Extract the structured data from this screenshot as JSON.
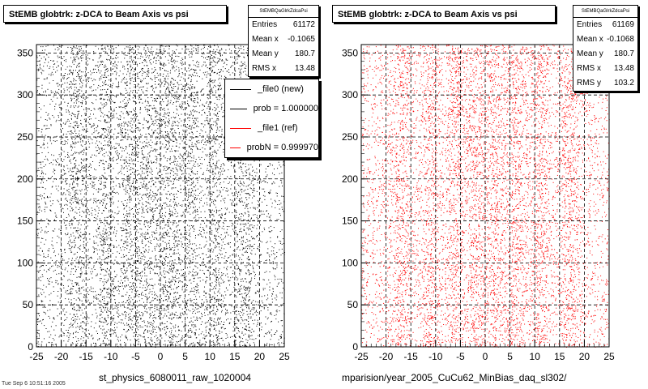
{
  "chart_data": [
    {
      "type": "scatter",
      "title": "StEMB globtrk: z-DCA to Beam Axis vs psi",
      "stats_header": "StEMBQaGlrkZdcaPsi",
      "stats": [
        {
          "label": "Entries",
          "value": "61172"
        },
        {
          "label": "Mean x",
          "value": "-0.1065"
        },
        {
          "label": "Mean y",
          "value": "180.7"
        },
        {
          "label": "RMS x",
          "value": "13.48"
        }
      ],
      "legend": [
        {
          "text": "_file0 (new)",
          "color": "#000000"
        },
        {
          "text": "prob = 1.000000",
          "color": "#000000"
        },
        {
          "text": "_file1 (ref)",
          "color": "#ff0000"
        },
        {
          "text": "probN = 0.999970",
          "color": "#ff0000"
        }
      ],
      "marker_color": "#000000",
      "xlim": [
        -25,
        25
      ],
      "ylim": [
        0,
        360
      ],
      "xticks": [
        -25,
        -20,
        -15,
        -10,
        -5,
        0,
        5,
        10,
        15,
        20,
        25
      ],
      "yticks": [
        0,
        50,
        100,
        150,
        200,
        250,
        300,
        350
      ],
      "grid": true,
      "distribution": "approximately uniform in y over 0-360; x spread -25 to 25 with density concentrated near x=0 and in vertical bands",
      "bottom_label": "st_physics_6080011_raw_1020004"
    },
    {
      "type": "scatter",
      "title": "StEMB globtrk: z-DCA to Beam Axis vs psi",
      "stats_header": "StEMBQaGlrkZdcaPsi",
      "stats": [
        {
          "label": "Entries",
          "value": "61169"
        },
        {
          "label": "Mean x",
          "value": "-0.1068"
        },
        {
          "label": "Mean y",
          "value": "180.7"
        },
        {
          "label": "RMS x",
          "value": "13.48"
        },
        {
          "label": "RMS y",
          "value": "103.2"
        }
      ],
      "marker_color": "#ff0000",
      "xlim": [
        -25,
        25
      ],
      "ylim": [
        0,
        360
      ],
      "xticks": [
        -25,
        -20,
        -15,
        -10,
        -5,
        0,
        5,
        10,
        15,
        20,
        25
      ],
      "yticks": [
        0,
        50,
        100,
        150,
        200,
        250,
        300,
        350
      ],
      "grid": true,
      "distribution": "approximately uniform in y over 0-360; x spread -25 to 25 with density concentrated near x=0 and in vertical bands",
      "bottom_label": "mparision/year_2005_CuCu62_MinBias_daq_sl302/"
    }
  ],
  "footer_fragment": "Tue Sep  6 10:51:16 2005"
}
